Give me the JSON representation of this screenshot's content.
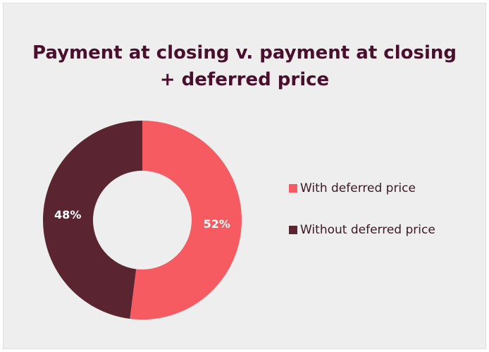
{
  "chart_data": {
    "type": "donut",
    "title": "Payment at closing v. payment at closing + deferred price",
    "categories": [
      "With deferred price",
      "Without deferred price"
    ],
    "values": [
      52,
      48
    ],
    "value_labels": [
      "52%",
      "48%"
    ],
    "colors": [
      "#f55b61",
      "#5a2530"
    ]
  }
}
